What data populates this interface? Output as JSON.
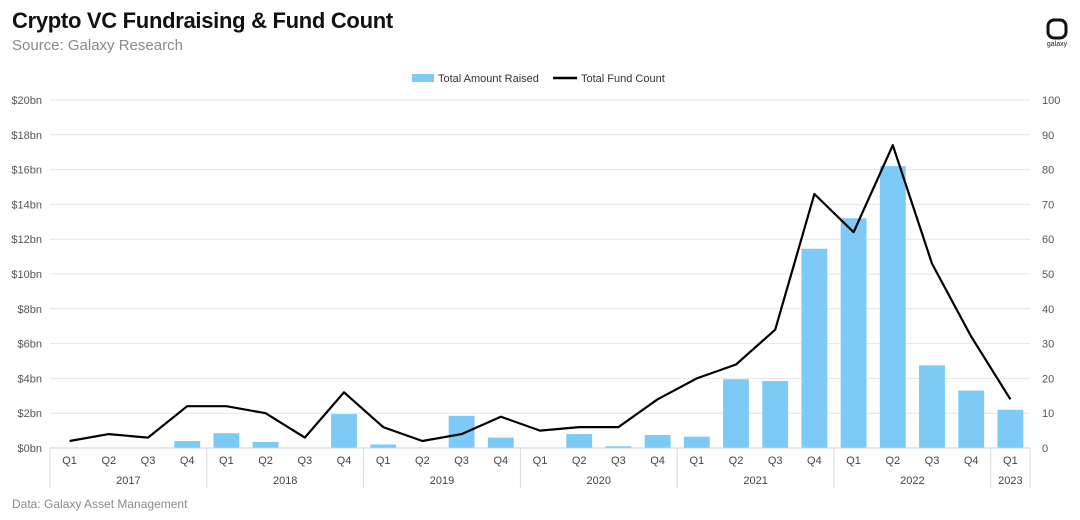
{
  "brand": {
    "logo_text": "galaxy"
  },
  "footer": {
    "text": "Data: Galaxy Asset Management"
  },
  "colors": {
    "bar": "#7dcaf7",
    "line": "#000000",
    "grid": "#e6e6e6",
    "axis_text": "#555555"
  },
  "chart_data": {
    "type": "bar",
    "title": "Crypto VC Fundraising & Fund Count",
    "subtitle": "Source: Galaxy Research",
    "legend_position": "top-center",
    "quarters": [
      "Q1",
      "Q2",
      "Q3",
      "Q4",
      "Q1",
      "Q2",
      "Q3",
      "Q4",
      "Q1",
      "Q2",
      "Q3",
      "Q4",
      "Q1",
      "Q2",
      "Q3",
      "Q4",
      "Q1",
      "Q2",
      "Q3",
      "Q4",
      "Q1",
      "Q2",
      "Q3",
      "Q4",
      "Q1"
    ],
    "years": [
      {
        "label": "2017",
        "count": 4
      },
      {
        "label": "2018",
        "count": 4
      },
      {
        "label": "2019",
        "count": 4
      },
      {
        "label": "2020",
        "count": 4
      },
      {
        "label": "2021",
        "count": 4
      },
      {
        "label": "2022",
        "count": 4
      },
      {
        "label": "2023",
        "count": 1
      }
    ],
    "series": [
      {
        "name": "Total Amount Raised",
        "type": "bar",
        "axis": "left",
        "values": [
          0,
          0,
          0,
          0.4,
          0.85,
          0.35,
          0,
          1.95,
          0.2,
          0,
          1.85,
          0.6,
          0,
          0.8,
          0.1,
          0.75,
          0.65,
          3.95,
          3.85,
          11.45,
          13.2,
          16.2,
          4.75,
          3.3,
          2.2
        ]
      },
      {
        "name": "Total Fund Count",
        "type": "line",
        "axis": "right",
        "values": [
          2,
          4,
          3,
          12,
          12,
          10,
          3,
          16,
          6,
          2,
          4,
          9,
          5,
          6,
          6,
          14,
          20,
          24,
          34,
          73,
          62,
          87,
          53,
          32,
          14
        ]
      }
    ],
    "y_left": {
      "min": 0,
      "max": 20,
      "step": 2,
      "tick_labels": [
        "$0bn",
        "$2bn",
        "$4bn",
        "$6bn",
        "$8bn",
        "$10bn",
        "$12bn",
        "$14bn",
        "$16bn",
        "$18bn",
        "$20bn"
      ]
    },
    "y_right": {
      "min": 0,
      "max": 100,
      "step": 10,
      "tick_labels": [
        "0",
        "10",
        "20",
        "30",
        "40",
        "50",
        "60",
        "70",
        "80",
        "90",
        "100"
      ]
    },
    "grid": true
  }
}
